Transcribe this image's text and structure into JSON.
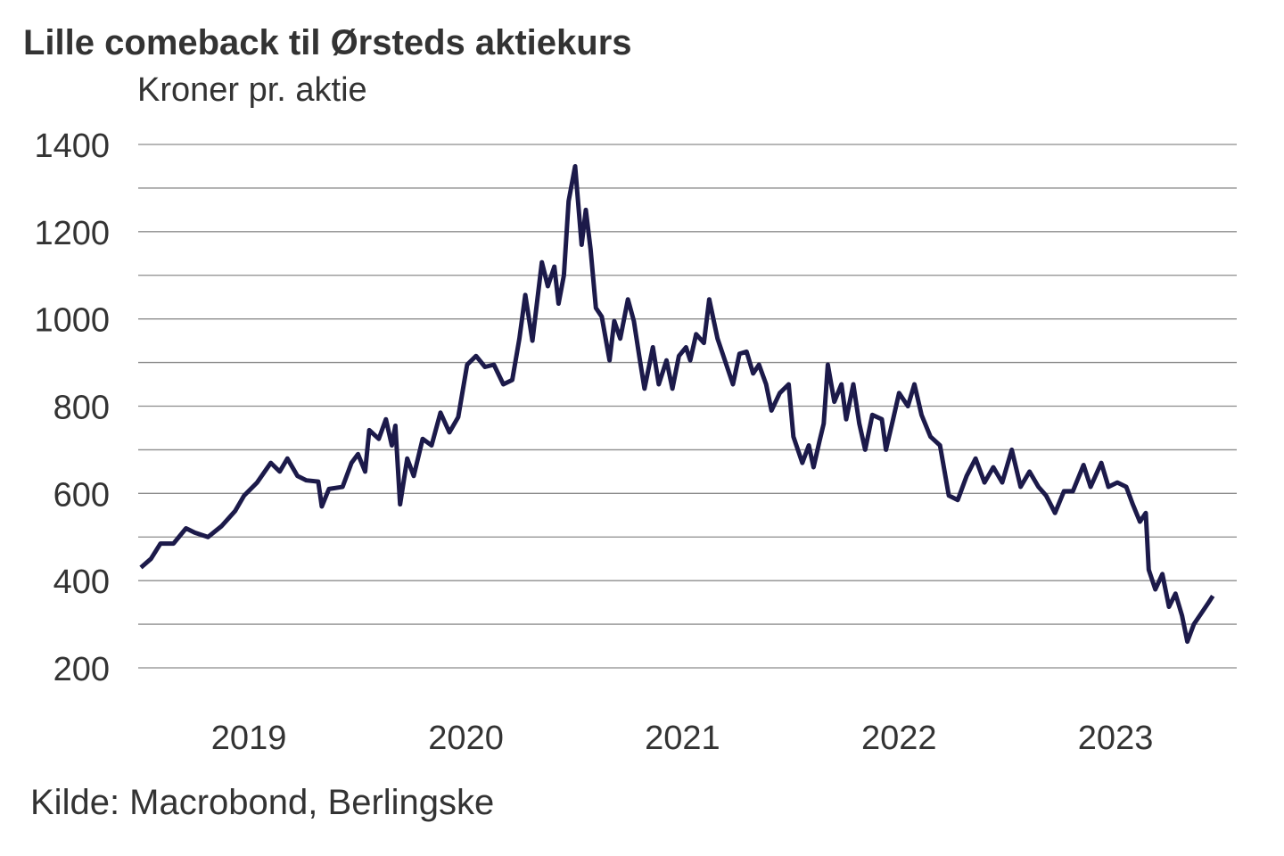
{
  "chart_data": {
    "type": "line",
    "title": "Lille comeback til Ørsteds aktiekurs",
    "ylabel": "Kroner pr. aktie",
    "xlabel": "",
    "source": "Kilde: Macrobond, Berlingske",
    "ylim": [
      200,
      1400
    ],
    "yticks": [
      200,
      400,
      600,
      800,
      1000,
      1200,
      1400
    ],
    "ygrid_step": 100,
    "grid": true,
    "xticks": [
      "2019",
      "2020",
      "2021",
      "2022",
      "2023"
    ],
    "line_color": "#1c1a4a",
    "grid_color": "#8c8c8c",
    "series": [
      {
        "points": [
          [
            "2019-01-01",
            430
          ],
          [
            "2019-01-18",
            450
          ],
          [
            "2019-02-03",
            485
          ],
          [
            "2019-02-25",
            485
          ],
          [
            "2019-03-18",
            520
          ],
          [
            "2019-04-02",
            510
          ],
          [
            "2019-04-24",
            500
          ],
          [
            "2019-05-17",
            525
          ],
          [
            "2019-06-09",
            560
          ],
          [
            "2019-06-24",
            595
          ],
          [
            "2019-07-16",
            625
          ],
          [
            "2019-08-08",
            670
          ],
          [
            "2019-08-23",
            650
          ],
          [
            "2019-09-05",
            680
          ],
          [
            "2019-09-22",
            640
          ],
          [
            "2019-10-07",
            630
          ],
          [
            "2019-10-27",
            627
          ],
          [
            "2019-11-02",
            570
          ],
          [
            "2019-11-14",
            610
          ],
          [
            "2019-12-07",
            615
          ],
          [
            "2019-12-22",
            670
          ],
          [
            "2020-01-02",
            690
          ],
          [
            "2020-01-14",
            650
          ],
          [
            "2020-01-21",
            745
          ],
          [
            "2020-02-06",
            725
          ],
          [
            "2020-02-18",
            770
          ],
          [
            "2020-02-28",
            710
          ],
          [
            "2020-03-05",
            755
          ],
          [
            "2020-03-13",
            575
          ],
          [
            "2020-03-25",
            680
          ],
          [
            "2020-04-05",
            640
          ],
          [
            "2020-04-20",
            725
          ],
          [
            "2020-05-05",
            710
          ],
          [
            "2020-05-20",
            785
          ],
          [
            "2020-06-04",
            740
          ],
          [
            "2020-06-19",
            775
          ],
          [
            "2020-07-04",
            895
          ],
          [
            "2020-07-19",
            915
          ],
          [
            "2020-08-03",
            890
          ],
          [
            "2020-08-18",
            895
          ],
          [
            "2020-09-03",
            850
          ],
          [
            "2020-09-18",
            860
          ],
          [
            "2020-09-30",
            955
          ],
          [
            "2020-10-10",
            1055
          ],
          [
            "2020-10-22",
            950
          ],
          [
            "2020-11-07",
            1130
          ],
          [
            "2020-11-17",
            1075
          ],
          [
            "2020-11-28",
            1120
          ],
          [
            "2020-12-05",
            1035
          ],
          [
            "2020-12-14",
            1100
          ],
          [
            "2020-12-22",
            1270
          ],
          [
            "2021-01-02",
            1350
          ],
          [
            "2021-01-13",
            1170
          ],
          [
            "2021-01-20",
            1250
          ],
          [
            "2021-01-28",
            1160
          ],
          [
            "2021-02-06",
            1025
          ],
          [
            "2021-02-16",
            1005
          ],
          [
            "2021-03-01",
            905
          ],
          [
            "2021-03-09",
            995
          ],
          [
            "2021-03-19",
            955
          ],
          [
            "2021-04-01",
            1045
          ],
          [
            "2021-04-11",
            995
          ],
          [
            "2021-04-20",
            915
          ],
          [
            "2021-04-29",
            840
          ],
          [
            "2021-05-13",
            935
          ],
          [
            "2021-05-23",
            850
          ],
          [
            "2021-06-05",
            905
          ],
          [
            "2021-06-15",
            840
          ],
          [
            "2021-06-26",
            915
          ],
          [
            "2021-07-08",
            935
          ],
          [
            "2021-07-15",
            905
          ],
          [
            "2021-07-25",
            965
          ],
          [
            "2021-08-07",
            945
          ],
          [
            "2021-08-16",
            1045
          ],
          [
            "2021-08-30",
            955
          ],
          [
            "2021-09-14",
            895
          ],
          [
            "2021-09-25",
            850
          ],
          [
            "2021-10-06",
            920
          ],
          [
            "2021-10-18",
            925
          ],
          [
            "2021-10-29",
            875
          ],
          [
            "2021-11-08",
            895
          ],
          [
            "2021-11-20",
            850
          ],
          [
            "2021-11-29",
            790
          ],
          [
            "2021-12-13",
            830
          ],
          [
            "2021-12-28",
            850
          ],
          [
            "2022-01-05",
            730
          ],
          [
            "2022-01-20",
            670
          ],
          [
            "2022-01-31",
            710
          ],
          [
            "2022-02-08",
            660
          ],
          [
            "2022-02-18",
            720
          ],
          [
            "2022-02-25",
            760
          ],
          [
            "2022-03-04",
            895
          ],
          [
            "2022-03-15",
            810
          ],
          [
            "2022-03-27",
            850
          ],
          [
            "2022-04-04",
            770
          ],
          [
            "2022-04-16",
            850
          ],
          [
            "2022-04-26",
            760
          ],
          [
            "2022-05-06",
            700
          ],
          [
            "2022-05-18",
            780
          ],
          [
            "2022-06-03",
            770
          ],
          [
            "2022-06-10",
            700
          ],
          [
            "2022-06-22",
            770
          ],
          [
            "2022-07-02",
            830
          ],
          [
            "2022-07-17",
            800
          ],
          [
            "2022-07-28",
            850
          ],
          [
            "2022-08-09",
            780
          ],
          [
            "2022-08-24",
            730
          ],
          [
            "2022-09-09",
            710
          ],
          [
            "2022-09-24",
            595
          ],
          [
            "2022-10-09",
            585
          ],
          [
            "2022-10-24",
            640
          ],
          [
            "2022-11-08",
            680
          ],
          [
            "2022-11-23",
            625
          ],
          [
            "2022-12-08",
            660
          ],
          [
            "2022-12-23",
            625
          ],
          [
            "2023-01-08",
            700
          ],
          [
            "2023-01-23",
            615
          ],
          [
            "2023-02-07",
            650
          ],
          [
            "2023-02-22",
            615
          ],
          [
            "2023-03-07",
            595
          ],
          [
            "2023-03-22",
            555
          ],
          [
            "2023-04-06",
            605
          ],
          [
            "2023-04-21",
            605
          ],
          [
            "2023-05-09",
            665
          ],
          [
            "2023-05-21",
            615
          ],
          [
            "2023-06-08",
            670
          ],
          [
            "2023-06-20",
            615
          ],
          [
            "2023-07-05",
            625
          ],
          [
            "2023-07-20",
            615
          ],
          [
            "2023-07-31",
            575
          ],
          [
            "2023-08-12",
            535
          ],
          [
            "2023-08-22",
            555
          ],
          [
            "2023-08-27",
            425
          ],
          [
            "2023-09-07",
            380
          ],
          [
            "2023-09-19",
            415
          ],
          [
            "2023-09-30",
            340
          ],
          [
            "2023-10-11",
            370
          ],
          [
            "2023-10-22",
            320
          ],
          [
            "2023-10-31",
            260
          ],
          [
            "2023-11-11",
            300
          ],
          [
            "2023-11-26",
            330
          ],
          [
            "2023-12-06",
            350
          ],
          [
            "2023-12-13",
            365
          ]
        ]
      }
    ]
  }
}
